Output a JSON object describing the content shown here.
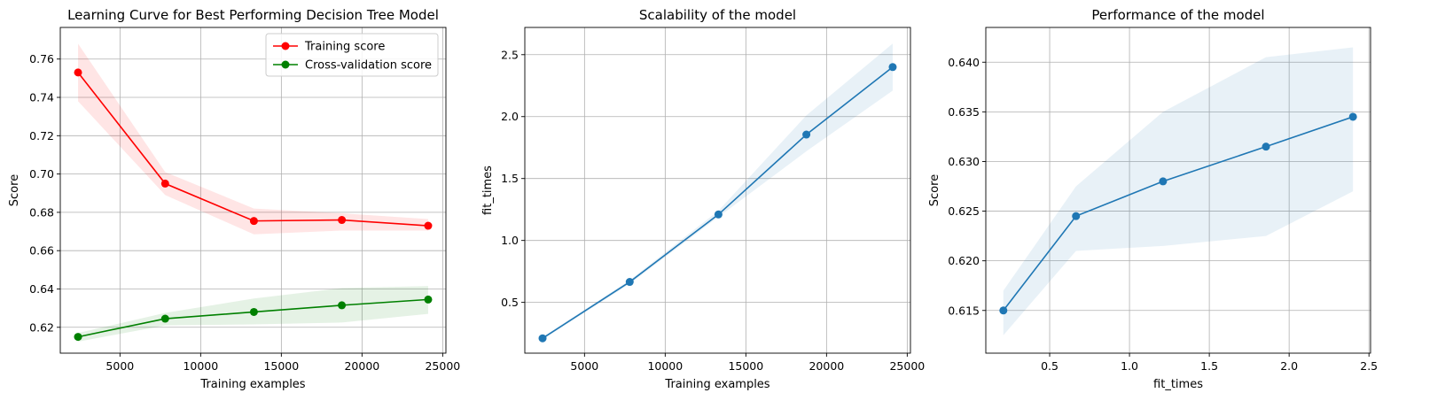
{
  "chart_data": [
    {
      "type": "line",
      "title": "Learning Curve for Best Performing Decision Tree Model",
      "xlabel": "Training examples",
      "ylabel": "Score",
      "xlim": [
        1300,
        25200
      ],
      "ylim": [
        0.6065,
        0.7765
      ],
      "xticks": [
        5000,
        10000,
        15000,
        20000,
        25000
      ],
      "yticks": [
        0.62,
        0.64,
        0.66,
        0.68,
        0.7,
        0.72,
        0.74,
        0.76
      ],
      "ytick_decimals": 2,
      "grid": true,
      "legend_position": "top-right",
      "x": [
        2400,
        7800,
        13300,
        18750,
        24100
      ],
      "series": [
        {
          "name": "Training score",
          "color": "#ff0000",
          "values": [
            0.753,
            0.695,
            0.6755,
            0.676,
            0.673
          ],
          "band_lower": [
            0.738,
            0.689,
            0.6685,
            0.6705,
            0.6705
          ],
          "band_upper": [
            0.768,
            0.701,
            0.682,
            0.6795,
            0.6765
          ]
        },
        {
          "name": "Cross-validation score",
          "color": "#008000",
          "values": [
            0.615,
            0.6245,
            0.628,
            0.6315,
            0.6345
          ],
          "band_lower": [
            0.6125,
            0.621,
            0.6215,
            0.6225,
            0.627
          ],
          "band_upper": [
            0.617,
            0.6275,
            0.635,
            0.6405,
            0.6415
          ]
        }
      ]
    },
    {
      "type": "line",
      "title": "Scalability of the model",
      "xlabel": "Training examples",
      "ylabel": "fit_times",
      "xlim": [
        1300,
        25200
      ],
      "ylim": [
        0.09,
        2.72
      ],
      "xticks": [
        5000,
        10000,
        15000,
        20000,
        25000
      ],
      "yticks": [
        0.5,
        1.0,
        1.5,
        2.0,
        2.5
      ],
      "ytick_decimals": 1,
      "grid": true,
      "x": [
        2400,
        7800,
        13300,
        18750,
        24100
      ],
      "series": [
        {
          "color": "#1f77b4",
          "values": [
            0.21,
            0.665,
            1.21,
            1.855,
            2.4
          ],
          "band_lower": [
            0.2,
            0.65,
            1.19,
            1.72,
            2.21
          ],
          "band_upper": [
            0.22,
            0.68,
            1.24,
            2.01,
            2.59
          ]
        }
      ]
    },
    {
      "type": "line",
      "title": "Performance of the model",
      "xlabel": "fit_times",
      "ylabel": "Score",
      "xlim": [
        0.1,
        2.51
      ],
      "ylim": [
        0.6107,
        0.6435
      ],
      "xticks": [
        0.5,
        1.0,
        1.5,
        2.0,
        2.5
      ],
      "yticks": [
        0.615,
        0.62,
        0.625,
        0.63,
        0.635,
        0.64
      ],
      "ytick_decimals": 3,
      "xtick_decimals": 1,
      "grid": true,
      "x": [
        0.21,
        0.665,
        1.21,
        1.855,
        2.4
      ],
      "series": [
        {
          "color": "#1f77b4",
          "values": [
            0.615,
            0.6245,
            0.628,
            0.6315,
            0.6345
          ],
          "band_lower": [
            0.6125,
            0.621,
            0.6215,
            0.6225,
            0.627
          ],
          "band_upper": [
            0.617,
            0.6275,
            0.635,
            0.6405,
            0.6415
          ]
        }
      ]
    }
  ]
}
